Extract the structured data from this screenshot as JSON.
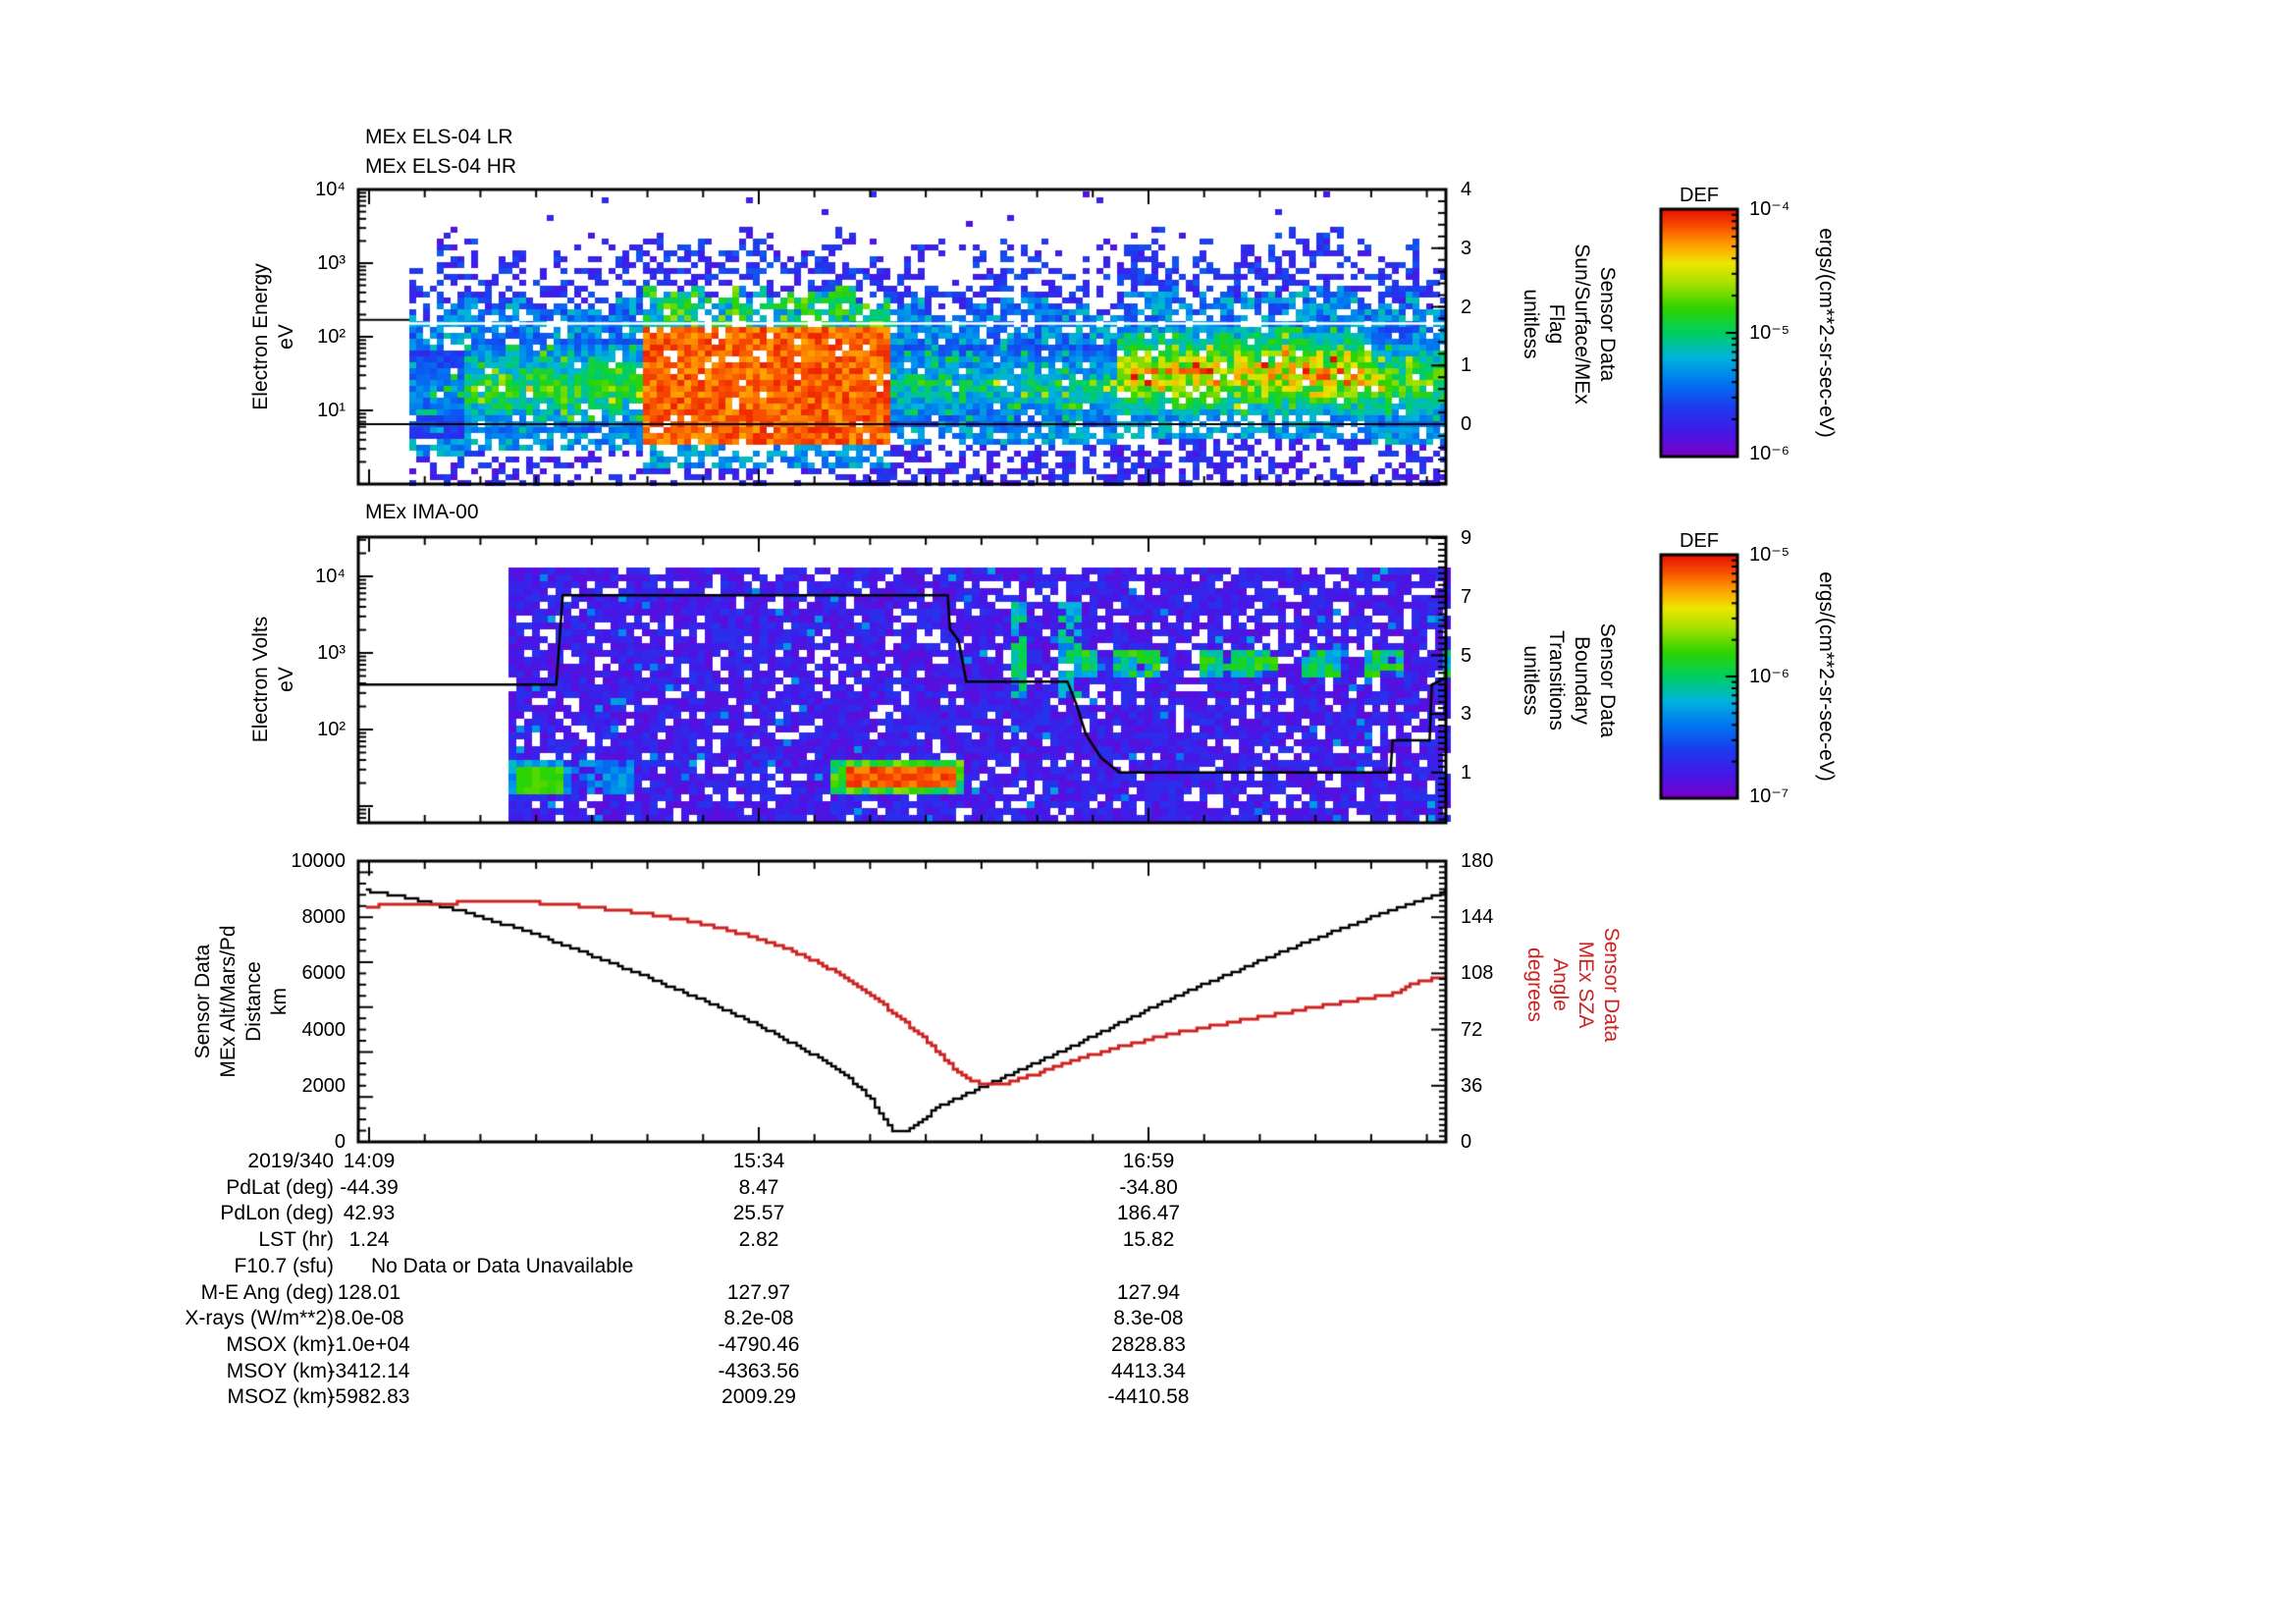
{
  "page": {
    "background": "#ffffff"
  },
  "colors": {
    "axis": "#000000",
    "red_line": "#cc2222",
    "palette_stops": [
      [
        0.0,
        "#7a00c8"
      ],
      [
        0.1,
        "#4418e8"
      ],
      [
        0.2,
        "#1b3cee"
      ],
      [
        0.3,
        "#0077f2"
      ],
      [
        0.4,
        "#00b4dc"
      ],
      [
        0.5,
        "#00cf60"
      ],
      [
        0.6,
        "#2fd400"
      ],
      [
        0.7,
        "#a8e000"
      ],
      [
        0.78,
        "#eee600"
      ],
      [
        0.86,
        "#ff9a00"
      ],
      [
        0.93,
        "#f84e00"
      ],
      [
        1.0,
        "#e60f00"
      ]
    ]
  },
  "chart_data": [
    {
      "type": "heatmap",
      "id": "els",
      "title": [
        "MEx ELS-04 LR",
        "MEx ELS-04 HR"
      ],
      "ylabel_lines": [
        "Electron Energy",
        "eV"
      ],
      "yticks": [
        "10⁴",
        "10³",
        "10²",
        "10¹"
      ],
      "y_log_range": [
        1,
        10000
      ],
      "right_axis": {
        "label_lines": [
          "Sensor Data",
          "Sun/Surface/MEx",
          "Flag",
          "unitless"
        ],
        "ticks": [
          "4",
          "3",
          "2",
          "1",
          "0"
        ],
        "range": [
          -1,
          4
        ]
      },
      "colorbar": {
        "title": "DEF",
        "ticks": [
          "10⁻⁴",
          "10⁻⁵",
          "10⁻⁶"
        ],
        "unit": "ergs/(cm**2-sr-sec-eV)"
      },
      "data_start_frac": 0.047,
      "gap_row_decade": 2.18,
      "flag_overlays": [
        {
          "points": [
            [
              0.0,
              0
            ],
            [
              1.0,
              0
            ]
          ]
        },
        {
          "points": [
            [
              0.0,
              1.78
            ],
            [
              0.047,
              1.78
            ]
          ]
        }
      ],
      "features": [
        {
          "kind": "band",
          "f": [
            0.047,
            0.095
          ],
          "d": [
            0.65,
            1.85
          ],
          "v": 0.35
        },
        {
          "kind": "band",
          "f": [
            0.095,
            0.262
          ],
          "d": [
            0.7,
            1.95
          ],
          "v": 0.58
        },
        {
          "kind": "blob",
          "f": [
            0.262,
            0.487
          ],
          "d": [
            0.5,
            2.1
          ],
          "v": 0.96
        },
        {
          "kind": "band",
          "f": [
            0.487,
            0.699
          ],
          "d": [
            0.75,
            1.9
          ],
          "v": 0.48
        },
        {
          "kind": "band",
          "f": [
            0.699,
            0.93
          ],
          "d": [
            0.9,
            2.1
          ],
          "v": 0.8
        },
        {
          "kind": "band",
          "f": [
            0.93,
            1.001
          ],
          "d": [
            0.8,
            2.0
          ],
          "v": 0.62
        }
      ]
    },
    {
      "type": "heatmap",
      "id": "ima",
      "title": [
        "MEx IMA-00"
      ],
      "ylabel_lines": [
        "Electron Volts",
        "eV"
      ],
      "yticks": [
        "10⁴",
        "10³",
        "10²"
      ],
      "right_axis": {
        "label_lines": [
          "Sensor Data",
          "Boundary",
          "Transitions",
          "unitless"
        ],
        "ticks": [
          "9",
          "7",
          "5",
          "3",
          "1"
        ],
        "range": [
          -1,
          9
        ]
      },
      "colorbar": {
        "title": "DEF",
        "ticks": [
          "10⁻⁵",
          "10⁻⁶",
          "10⁻⁷"
        ],
        "unit": "ergs/(cm**2-sr-sec-eV)"
      },
      "data_start_frac": 0.138,
      "boundary_overlay": [
        [
          0.0,
          4.0
        ],
        [
          0.182,
          4.0
        ],
        [
          0.188,
          7.05
        ],
        [
          0.542,
          7.05
        ],
        [
          0.544,
          5.9
        ],
        [
          0.552,
          5.5
        ],
        [
          0.559,
          4.1
        ],
        [
          0.652,
          4.1
        ],
        [
          0.66,
          3.35
        ],
        [
          0.669,
          2.3
        ],
        [
          0.683,
          1.5
        ],
        [
          0.7,
          1.0
        ],
        [
          0.949,
          1.0
        ],
        [
          0.951,
          2.1
        ],
        [
          0.985,
          2.1
        ],
        [
          0.987,
          4.0
        ],
        [
          0.993,
          4.1
        ],
        [
          1.0,
          4.25
        ]
      ],
      "features": [
        {
          "kind": "blob",
          "f": [
            0.138,
            0.19
          ],
          "yf": [
            0.79,
            0.91
          ],
          "v": 0.62
        },
        {
          "kind": "speckle",
          "f": [
            0.19,
            0.257
          ],
          "yf": [
            0.78,
            0.9
          ],
          "v": 0.33
        },
        {
          "kind": "blob",
          "f": [
            0.436,
            0.557
          ],
          "yf": [
            0.77,
            0.91
          ],
          "v": 0.95
        },
        {
          "kind": "streaks",
          "f": [
            0.578,
            0.668
          ],
          "yf": [
            0.23,
            0.57
          ],
          "v": 0.38
        },
        {
          "kind": "dashes",
          "f": [
            0.663,
            1.001
          ],
          "yf": [
            0.4,
            0.49
          ],
          "v": 0.45
        }
      ]
    },
    {
      "type": "line",
      "id": "traj",
      "xticks": [
        "14:09",
        "15:34",
        "16:59"
      ],
      "left_axis": {
        "label_lines": [
          "Sensor Data",
          "MEx Alt/Mars/Pd",
          "Distance",
          "km"
        ],
        "ticks": [
          "10000",
          "8000",
          "6000",
          "4000",
          "2000",
          "0"
        ],
        "range": [
          0,
          10000
        ]
      },
      "right_axis": {
        "label_lines": [
          "Sensor Data",
          "MEx SZA",
          "Angle",
          "degrees"
        ],
        "ticks": [
          "180",
          "144",
          "108",
          "72",
          "36",
          "0"
        ],
        "range": [
          0,
          180
        ]
      },
      "series": [
        {
          "name": "MEx Alt/Mars/Pd Distance",
          "axis": "left",
          "color": "#000000",
          "points": [
            [
              0.007,
              8950
            ],
            [
              0.05,
              8650
            ],
            [
              0.1,
              8150
            ],
            [
              0.15,
              7550
            ],
            [
              0.2,
              6850
            ],
            [
              0.25,
              6100
            ],
            [
              0.3,
              5300
            ],
            [
              0.34,
              4650
            ],
            [
              0.38,
              3900
            ],
            [
              0.42,
              3050
            ],
            [
              0.45,
              2300
            ],
            [
              0.47,
              1550
            ],
            [
              0.482,
              850
            ],
            [
              0.49,
              430
            ],
            [
              0.505,
              430
            ],
            [
              0.52,
              800
            ],
            [
              0.53,
              1200
            ],
            [
              0.57,
              1900
            ],
            [
              0.61,
              2600
            ],
            [
              0.65,
              3300
            ],
            [
              0.69,
              4050
            ],
            [
              0.73,
              4800
            ],
            [
              0.77,
              5500
            ],
            [
              0.81,
              6150
            ],
            [
              0.86,
              6950
            ],
            [
              0.91,
              7700
            ],
            [
              0.96,
              8400
            ],
            [
              1.0,
              8950
            ]
          ]
        },
        {
          "name": "MEx SZA Angle",
          "axis": "right",
          "color": "#cc2222",
          "points": [
            [
              0.007,
              151
            ],
            [
              0.04,
              152.3
            ],
            [
              0.08,
              153.2
            ],
            [
              0.13,
              153.5
            ],
            [
              0.17,
              153.2
            ],
            [
              0.2,
              151.5
            ],
            [
              0.24,
              148.5
            ],
            [
              0.28,
              144.5
            ],
            [
              0.31,
              140.5
            ],
            [
              0.34,
              135.5
            ],
            [
              0.37,
              129.5
            ],
            [
              0.4,
              122
            ],
            [
              0.42,
              115.5
            ],
            [
              0.44,
              108
            ],
            [
              0.46,
              99
            ],
            [
              0.48,
              89
            ],
            [
              0.5,
              78
            ],
            [
              0.52,
              66
            ],
            [
              0.535,
              56
            ],
            [
              0.55,
              45
            ],
            [
              0.56,
              40
            ],
            [
              0.572,
              36.8
            ],
            [
              0.585,
              36.5
            ],
            [
              0.6,
              38.5
            ],
            [
              0.62,
              43
            ],
            [
              0.645,
              49
            ],
            [
              0.67,
              55
            ],
            [
              0.7,
              61
            ],
            [
              0.73,
              66.5
            ],
            [
              0.76,
              71
            ],
            [
              0.8,
              76.5
            ],
            [
              0.84,
              81.5
            ],
            [
              0.88,
              86.5
            ],
            [
              0.92,
              91.5
            ],
            [
              0.95,
              95
            ],
            [
              0.975,
              103
            ],
            [
              1.0,
              106
            ]
          ]
        }
      ]
    }
  ],
  "table": {
    "date_label": "2019/340",
    "rows": [
      {
        "label": "PdLat (deg)",
        "values": [
          "-44.39",
          "8.47",
          "-34.80"
        ]
      },
      {
        "label": "PdLon (deg)",
        "values": [
          "42.93",
          "25.57",
          "186.47"
        ]
      },
      {
        "label": "LST (hr)",
        "values": [
          "1.24",
          "2.82",
          "15.82"
        ]
      },
      {
        "label": "F10.7 (sfu)",
        "values": null,
        "span": "No Data or Data Unavailable"
      },
      {
        "label": "M-E Ang (deg)",
        "values": [
          "128.01",
          "127.97",
          "127.94"
        ]
      },
      {
        "label": "X-rays (W/m**2)",
        "values": [
          "8.0e-08",
          "8.2e-08",
          "8.3e-08"
        ]
      },
      {
        "label": "MSOX (km)",
        "values": [
          "-1.0e+04",
          "-4790.46",
          "2828.83"
        ]
      },
      {
        "label": "MSOY (km)",
        "values": [
          "-3412.14",
          "-4363.56",
          "4413.34"
        ]
      },
      {
        "label": "MSOZ (km)",
        "values": [
          "-5982.83",
          "2009.29",
          "-4410.58"
        ]
      }
    ]
  }
}
